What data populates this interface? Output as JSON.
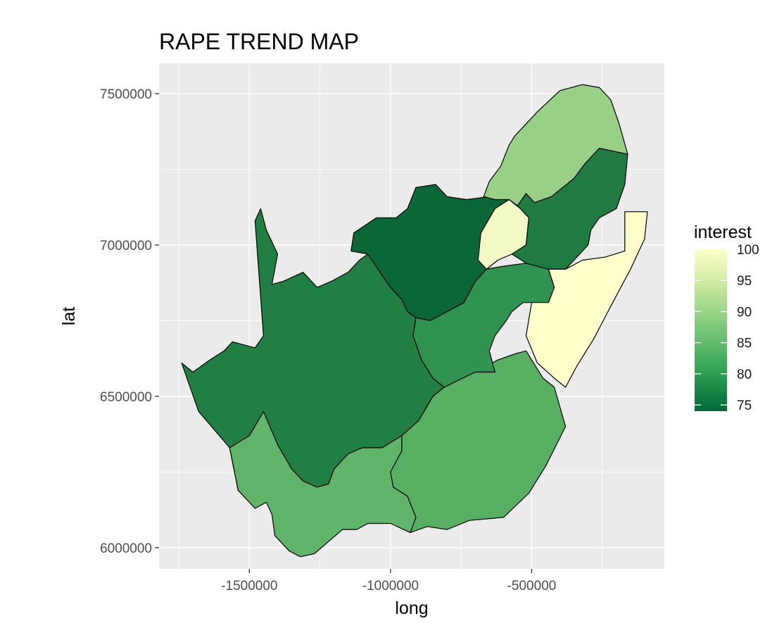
{
  "chart_data": {
    "type": "choropleth",
    "title": "RAPE TREND MAP",
    "xlabel": "long",
    "ylabel": "lat",
    "x_ticks": [
      -1500000,
      -1000000,
      -500000
    ],
    "x_tick_labels": [
      "-1500000",
      "-1000000",
      "-500000"
    ],
    "y_ticks": [
      6000000,
      6500000,
      7000000,
      7500000
    ],
    "y_tick_labels": [
      "6000000",
      "6500000",
      "7000000",
      "7500000"
    ],
    "xlim": [
      -1820000,
      -30000
    ],
    "ylim": [
      5930000,
      7600000
    ],
    "grid": true,
    "legend": {
      "title": "interest",
      "position": "right",
      "breaks": [
        100,
        95,
        90,
        85,
        80,
        75
      ],
      "break_labels": [
        "100",
        "95",
        "90",
        "85",
        "80",
        "75"
      ],
      "range": [
        74,
        100
      ],
      "colors": [
        "#006837",
        "#31a354",
        "#78c679",
        "#c2e699",
        "#ffffcc"
      ]
    },
    "regions": [
      {
        "id": "northern-cape",
        "interest": 77,
        "fill": "#227f44",
        "outline": [
          [
            -1570000,
            6330000
          ],
          [
            -1540000,
            6190000
          ],
          [
            -1480000,
            6130000
          ],
          [
            -1440000,
            6150000
          ],
          [
            -1420000,
            6210000
          ],
          [
            -1350000,
            6260000
          ],
          [
            -1310000,
            6220000
          ],
          [
            -1260000,
            6200000
          ],
          [
            -1220000,
            6210000
          ],
          [
            -1200000,
            6260000
          ],
          [
            -1150000,
            6310000
          ],
          [
            -1100000,
            6330000
          ],
          [
            -1030000,
            6330000
          ],
          [
            -960000,
            6370000
          ],
          [
            -900000,
            6420000
          ],
          [
            -850000,
            6500000
          ],
          [
            -810000,
            6530000
          ],
          [
            -850000,
            6560000
          ],
          [
            -890000,
            6620000
          ],
          [
            -920000,
            6700000
          ],
          [
            -910000,
            6760000
          ],
          [
            -940000,
            6780000
          ],
          [
            -960000,
            6820000
          ],
          [
            -1000000,
            6860000
          ],
          [
            -1030000,
            6900000
          ],
          [
            -1050000,
            6960000
          ],
          [
            -1080000,
            6970000
          ],
          [
            -1110000,
            6950000
          ],
          [
            -1150000,
            6910000
          ],
          [
            -1210000,
            6880000
          ],
          [
            -1260000,
            6860000
          ],
          [
            -1310000,
            6910000
          ],
          [
            -1380000,
            6880000
          ],
          [
            -1420000,
            6870000
          ],
          [
            -1400000,
            6970000
          ],
          [
            -1440000,
            7050000
          ],
          [
            -1460000,
            7120000
          ],
          [
            -1480000,
            7080000
          ],
          [
            -1450000,
            6700000
          ],
          [
            -1480000,
            6660000
          ],
          [
            -1520000,
            6670000
          ],
          [
            -1560000,
            6680000
          ],
          [
            -1590000,
            6650000
          ],
          [
            -1640000,
            6620000
          ],
          [
            -1700000,
            6580000
          ],
          [
            -1740000,
            6610000
          ],
          [
            -1680000,
            6450000
          ]
        ]
      },
      {
        "id": "western-cape",
        "interest": 84,
        "fill": "#60b56b",
        "outline": [
          [
            -1570000,
            6330000
          ],
          [
            -1500000,
            6370000
          ],
          [
            -1450000,
            6450000
          ],
          [
            -1400000,
            6340000
          ],
          [
            -1350000,
            6260000
          ],
          [
            -1310000,
            6220000
          ],
          [
            -1260000,
            6200000
          ],
          [
            -1220000,
            6210000
          ],
          [
            -1200000,
            6260000
          ],
          [
            -1150000,
            6310000
          ],
          [
            -1100000,
            6330000
          ],
          [
            -1030000,
            6330000
          ],
          [
            -960000,
            6370000
          ],
          [
            -960000,
            6320000
          ],
          [
            -1000000,
            6250000
          ],
          [
            -990000,
            6200000
          ],
          [
            -940000,
            6170000
          ],
          [
            -910000,
            6100000
          ],
          [
            -930000,
            6050000
          ],
          [
            -1000000,
            6080000
          ],
          [
            -1080000,
            6080000
          ],
          [
            -1120000,
            6060000
          ],
          [
            -1170000,
            6060000
          ],
          [
            -1220000,
            6020000
          ],
          [
            -1270000,
            5980000
          ],
          [
            -1320000,
            5970000
          ],
          [
            -1360000,
            5990000
          ],
          [
            -1410000,
            6040000
          ],
          [
            -1420000,
            6110000
          ],
          [
            -1440000,
            6150000
          ],
          [
            -1480000,
            6130000
          ],
          [
            -1540000,
            6190000
          ]
        ]
      },
      {
        "id": "eastern-cape",
        "interest": 84,
        "fill": "#58b063",
        "outline": [
          [
            -960000,
            6370000
          ],
          [
            -900000,
            6420000
          ],
          [
            -850000,
            6500000
          ],
          [
            -810000,
            6530000
          ],
          [
            -700000,
            6580000
          ],
          [
            -620000,
            6620000
          ],
          [
            -560000,
            6640000
          ],
          [
            -520000,
            6650000
          ],
          [
            -460000,
            6560000
          ],
          [
            -420000,
            6530000
          ],
          [
            -380000,
            6400000
          ],
          [
            -450000,
            6270000
          ],
          [
            -510000,
            6180000
          ],
          [
            -600000,
            6100000
          ],
          [
            -720000,
            6090000
          ],
          [
            -800000,
            6060000
          ],
          [
            -870000,
            6070000
          ],
          [
            -930000,
            6050000
          ],
          [
            -910000,
            6100000
          ],
          [
            -940000,
            6170000
          ],
          [
            -990000,
            6200000
          ],
          [
            -1000000,
            6250000
          ],
          [
            -960000,
            6320000
          ]
        ]
      },
      {
        "id": "free-state",
        "interest": 81,
        "fill": "#309352",
        "outline": [
          [
            -910000,
            6760000
          ],
          [
            -920000,
            6700000
          ],
          [
            -890000,
            6620000
          ],
          [
            -850000,
            6560000
          ],
          [
            -810000,
            6530000
          ],
          [
            -700000,
            6580000
          ],
          [
            -630000,
            6580000
          ],
          [
            -650000,
            6650000
          ],
          [
            -630000,
            6700000
          ],
          [
            -590000,
            6750000
          ],
          [
            -570000,
            6780000
          ],
          [
            -530000,
            6810000
          ],
          [
            -500000,
            6810000
          ],
          [
            -440000,
            6810000
          ],
          [
            -420000,
            6860000
          ],
          [
            -440000,
            6920000
          ],
          [
            -520000,
            6940000
          ],
          [
            -600000,
            6930000
          ],
          [
            -660000,
            6920000
          ],
          [
            -700000,
            6880000
          ],
          [
            -740000,
            6810000
          ],
          [
            -800000,
            6780000
          ],
          [
            -860000,
            6750000
          ]
        ]
      },
      {
        "id": "north-west",
        "interest": 75,
        "fill": "#0b6738",
        "outline": [
          [
            -1080000,
            6970000
          ],
          [
            -1030000,
            6900000
          ],
          [
            -1000000,
            6860000
          ],
          [
            -960000,
            6820000
          ],
          [
            -940000,
            6780000
          ],
          [
            -910000,
            6760000
          ],
          [
            -860000,
            6750000
          ],
          [
            -800000,
            6780000
          ],
          [
            -740000,
            6810000
          ],
          [
            -700000,
            6880000
          ],
          [
            -660000,
            6920000
          ],
          [
            -620000,
            6950000
          ],
          [
            -630000,
            7020000
          ],
          [
            -580000,
            7070000
          ],
          [
            -580000,
            7150000
          ],
          [
            -650000,
            7160000
          ],
          [
            -730000,
            7150000
          ],
          [
            -800000,
            7160000
          ],
          [
            -840000,
            7200000
          ],
          [
            -910000,
            7190000
          ],
          [
            -940000,
            7120000
          ],
          [
            -980000,
            7090000
          ],
          [
            -1050000,
            7090000
          ],
          [
            -1130000,
            7040000
          ],
          [
            -1140000,
            6980000
          ]
        ]
      },
      {
        "id": "gauteng",
        "interest": 98,
        "fill": "#f2f9c4",
        "outline": [
          [
            -660000,
            6920000
          ],
          [
            -620000,
            6950000
          ],
          [
            -570000,
            6970000
          ],
          [
            -520000,
            7000000
          ],
          [
            -510000,
            7090000
          ],
          [
            -540000,
            7120000
          ],
          [
            -580000,
            7150000
          ],
          [
            -630000,
            7120000
          ],
          [
            -680000,
            7040000
          ],
          [
            -690000,
            6950000
          ]
        ]
      },
      {
        "id": "mpumalanga",
        "interest": 78,
        "fill": "#1f7b42",
        "outline": [
          [
            -570000,
            6970000
          ],
          [
            -520000,
            6940000
          ],
          [
            -440000,
            6920000
          ],
          [
            -380000,
            6920000
          ],
          [
            -320000,
            6980000
          ],
          [
            -300000,
            7000000
          ],
          [
            -290000,
            7050000
          ],
          [
            -260000,
            7090000
          ],
          [
            -200000,
            7120000
          ],
          [
            -170000,
            7200000
          ],
          [
            -160000,
            7300000
          ],
          [
            -260000,
            7320000
          ],
          [
            -310000,
            7270000
          ],
          [
            -350000,
            7220000
          ],
          [
            -430000,
            7160000
          ],
          [
            -490000,
            7140000
          ],
          [
            -520000,
            7170000
          ],
          [
            -550000,
            7130000
          ],
          [
            -510000,
            7090000
          ],
          [
            -520000,
            7000000
          ]
        ]
      },
      {
        "id": "limpopo",
        "interest": 88,
        "fill": "#98d088",
        "outline": [
          [
            -670000,
            7160000
          ],
          [
            -650000,
            7210000
          ],
          [
            -610000,
            7260000
          ],
          [
            -580000,
            7330000
          ],
          [
            -560000,
            7360000
          ],
          [
            -480000,
            7440000
          ],
          [
            -400000,
            7510000
          ],
          [
            -320000,
            7530000
          ],
          [
            -260000,
            7520000
          ],
          [
            -220000,
            7480000
          ],
          [
            -190000,
            7400000
          ],
          [
            -160000,
            7300000
          ],
          [
            -260000,
            7320000
          ],
          [
            -310000,
            7270000
          ],
          [
            -350000,
            7220000
          ],
          [
            -430000,
            7160000
          ],
          [
            -490000,
            7140000
          ],
          [
            -520000,
            7170000
          ],
          [
            -550000,
            7130000
          ],
          [
            -580000,
            7150000
          ],
          [
            -630000,
            7150000
          ]
        ]
      },
      {
        "id": "kwazulu-natal",
        "interest": 100,
        "fill": "#ffffcc",
        "outline": [
          [
            -440000,
            6920000
          ],
          [
            -420000,
            6860000
          ],
          [
            -440000,
            6810000
          ],
          [
            -500000,
            6810000
          ],
          [
            -520000,
            6700000
          ],
          [
            -480000,
            6610000
          ],
          [
            -420000,
            6560000
          ],
          [
            -380000,
            6530000
          ],
          [
            -340000,
            6600000
          ],
          [
            -280000,
            6690000
          ],
          [
            -230000,
            6780000
          ],
          [
            -190000,
            6850000
          ],
          [
            -150000,
            6920000
          ],
          [
            -100000,
            7020000
          ],
          [
            -90000,
            7110000
          ],
          [
            -170000,
            7110000
          ],
          [
            -170000,
            6980000
          ],
          [
            -240000,
            6960000
          ],
          [
            -320000,
            6950000
          ],
          [
            -380000,
            6920000
          ]
        ]
      }
    ]
  }
}
